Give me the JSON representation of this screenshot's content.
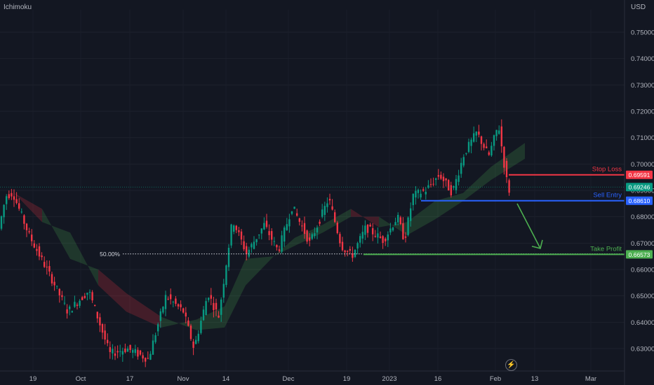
{
  "header": {
    "indicator": "Ichimoku",
    "currency": "USD"
  },
  "chart_data": {
    "type": "candlestick",
    "y_axis": {
      "ticks": [
        "0.75000",
        "0.74000",
        "0.73000",
        "0.72000",
        "0.71000",
        "0.70000",
        "0.69000",
        "0.68000",
        "0.67000",
        "0.66000",
        "0.65000",
        "0.64000",
        "0.63000"
      ],
      "range": [
        0.6215,
        0.7585
      ]
    },
    "x_axis": {
      "ticks": [
        "19",
        "Oct",
        "17",
        "Nov",
        "14",
        "Dec",
        "19",
        "2023",
        "16",
        "Feb",
        "13",
        "Mar"
      ]
    },
    "price_path": [
      {
        "t": 0,
        "v": 0.673
      },
      {
        "t": 12,
        "v": 0.688
      },
      {
        "t": 22,
        "v": 0.689
      },
      {
        "t": 45,
        "v": 0.673
      },
      {
        "t": 80,
        "v": 0.655
      },
      {
        "t": 100,
        "v": 0.644
      },
      {
        "t": 130,
        "v": 0.652
      },
      {
        "t": 160,
        "v": 0.628
      },
      {
        "t": 185,
        "v": 0.63
      },
      {
        "t": 215,
        "v": 0.626
      },
      {
        "t": 240,
        "v": 0.65
      },
      {
        "t": 265,
        "v": 0.644
      },
      {
        "t": 280,
        "v": 0.63
      },
      {
        "t": 300,
        "v": 0.651
      },
      {
        "t": 315,
        "v": 0.642
      },
      {
        "t": 335,
        "v": 0.679
      },
      {
        "t": 355,
        "v": 0.666
      },
      {
        "t": 380,
        "v": 0.677
      },
      {
        "t": 400,
        "v": 0.667
      },
      {
        "t": 420,
        "v": 0.684
      },
      {
        "t": 445,
        "v": 0.67
      },
      {
        "t": 472,
        "v": 0.687
      },
      {
        "t": 490,
        "v": 0.669
      },
      {
        "t": 505,
        "v": 0.665
      },
      {
        "t": 525,
        "v": 0.676
      },
      {
        "t": 550,
        "v": 0.671
      },
      {
        "t": 570,
        "v": 0.68
      },
      {
        "t": 580,
        "v": 0.671
      },
      {
        "t": 592,
        "v": 0.688
      },
      {
        "t": 610,
        "v": 0.69
      },
      {
        "t": 630,
        "v": 0.696
      },
      {
        "t": 648,
        "v": 0.689
      },
      {
        "t": 665,
        "v": 0.704
      },
      {
        "t": 683,
        "v": 0.712
      },
      {
        "t": 700,
        "v": 0.703
      },
      {
        "t": 714,
        "v": 0.715
      },
      {
        "t": 722,
        "v": 0.7
      },
      {
        "t": 728,
        "v": 0.69
      }
    ],
    "ichimoku_cloud": [
      {
        "t": 20,
        "a": 0.689,
        "b": 0.689
      },
      {
        "t": 60,
        "a": 0.678,
        "b": 0.683
      },
      {
        "t": 100,
        "a": 0.674,
        "b": 0.664
      },
      {
        "t": 140,
        "a": 0.654,
        "b": 0.66
      },
      {
        "t": 180,
        "a": 0.644,
        "b": 0.651
      },
      {
        "t": 230,
        "a": 0.638,
        "b": 0.642
      },
      {
        "t": 280,
        "a": 0.641,
        "b": 0.637
      },
      {
        "t": 320,
        "a": 0.646,
        "b": 0.638
      },
      {
        "t": 350,
        "a": 0.664,
        "b": 0.654
      },
      {
        "t": 390,
        "a": 0.665,
        "b": 0.665
      },
      {
        "t": 420,
        "a": 0.672,
        "b": 0.669
      },
      {
        "t": 460,
        "a": 0.677,
        "b": 0.674
      },
      {
        "t": 500,
        "a": 0.683,
        "b": 0.68
      },
      {
        "t": 540,
        "a": 0.676,
        "b": 0.68
      },
      {
        "t": 580,
        "a": 0.678,
        "b": 0.673
      },
      {
        "t": 620,
        "a": 0.686,
        "b": 0.679
      },
      {
        "t": 660,
        "a": 0.689,
        "b": 0.686
      },
      {
        "t": 700,
        "a": 0.699,
        "b": 0.694
      },
      {
        "t": 748,
        "a": 0.708,
        "b": 0.702
      }
    ],
    "levels": [
      {
        "name": "Stop Loss",
        "value": "0.69591",
        "price": 0.69591,
        "color": "#f23645",
        "start_t": 725
      },
      {
        "name": "Sell Entry",
        "value": "0.68610",
        "price": 0.6861,
        "color": "#2962ff",
        "start_t": 600
      },
      {
        "name": "Take Profit",
        "value": "0.66573",
        "price": 0.66573,
        "color": "#4caf50",
        "start_t": 518
      }
    ],
    "current_price": {
      "value": "0.69246",
      "price": 0.69246,
      "color": "#089981"
    },
    "fib_level": {
      "label": "50.00%",
      "price": 0.6659,
      "start_t": 175
    },
    "projection_arrow": {
      "from_t": 737,
      "from_v": 0.685,
      "to_t": 770,
      "to_v": 0.668,
      "color": "#4caf50"
    },
    "colors": {
      "up": "#089981",
      "down": "#f23645",
      "background": "#131722"
    }
  }
}
